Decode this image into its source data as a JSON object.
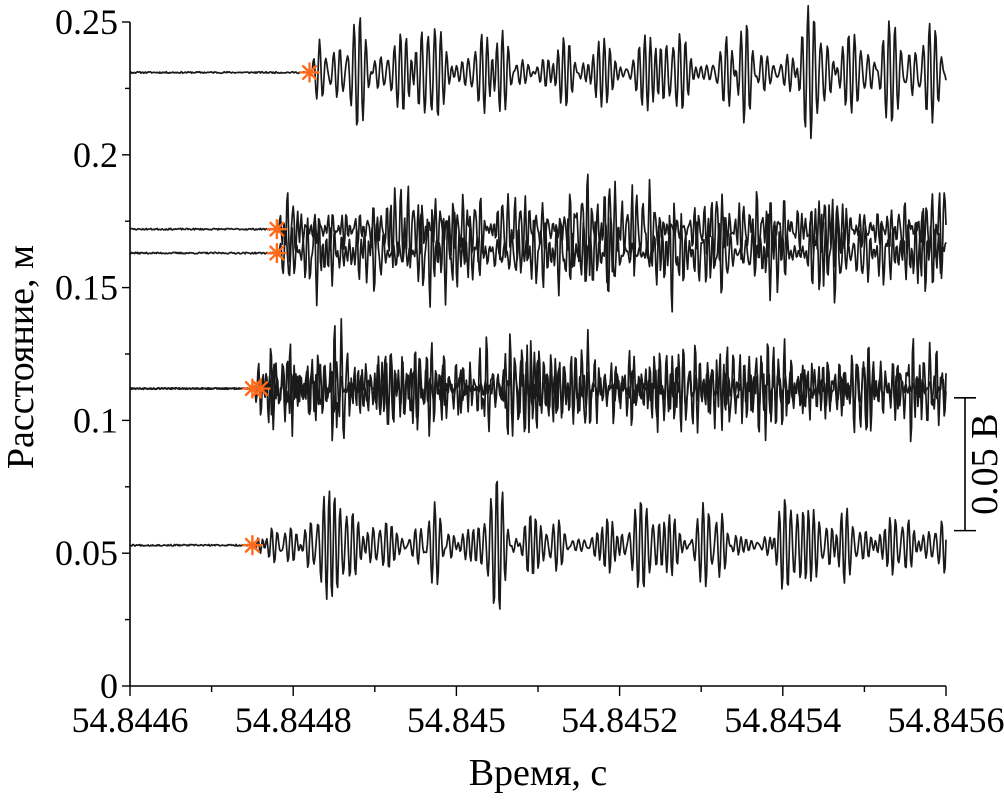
{
  "chart_data": {
    "type": "line",
    "xlabel": "Время, с",
    "ylabel": "Расстояние, м",
    "xlim": [
      54.8446,
      54.8456
    ],
    "ylim": [
      0,
      0.25
    ],
    "x_ticks": [
      {
        "value": 54.8446,
        "label": "54.8446"
      },
      {
        "value": 54.8448,
        "label": "54.8448"
      },
      {
        "value": 54.845,
        "label": "54.845"
      },
      {
        "value": 54.8452,
        "label": "54.8452"
      },
      {
        "value": 54.8454,
        "label": "54.8454"
      },
      {
        "value": 54.8456,
        "label": "54.8456"
      }
    ],
    "y_ticks": [
      {
        "value": 0,
        "label": "0"
      },
      {
        "value": 0.05,
        "label": "0.05"
      },
      {
        "value": 0.1,
        "label": "0.1"
      },
      {
        "value": 0.15,
        "label": "0.15"
      },
      {
        "value": 0.2,
        "label": "0.2"
      },
      {
        "value": 0.25,
        "label": "0.25"
      }
    ],
    "grid": false,
    "legend": "none",
    "marker_color": "#ff6a1a",
    "trace_color": "#1a1a1a",
    "series": [
      {
        "baseline": 0.231,
        "onset": 54.84482,
        "amplitude": 0.018,
        "seed": 11
      },
      {
        "baseline": 0.172,
        "onset": 54.84478,
        "amplitude": 0.016,
        "seed": 23
      },
      {
        "baseline": 0.163,
        "onset": 54.84478,
        "amplitude": 0.016,
        "seed": 37
      },
      {
        "baseline": 0.112,
        "onset": 54.84476,
        "amplitude": 0.017,
        "seed": 41
      },
      {
        "baseline": 0.112,
        "onset": 54.84475,
        "amplitude": 0.014,
        "seed": 53
      },
      {
        "baseline": 0.053,
        "onset": 54.84475,
        "amplitude": 0.016,
        "seed": 67
      }
    ],
    "scale_bar": {
      "label": "0.05 В",
      "top": 0.1085,
      "bottom": 0.0585
    }
  }
}
